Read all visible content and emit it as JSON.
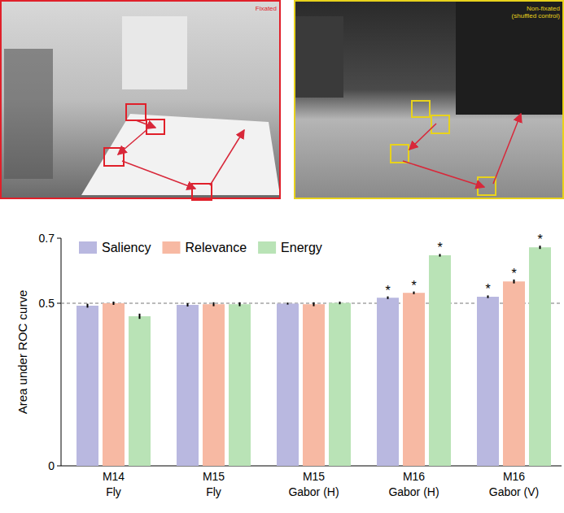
{
  "images": [
    {
      "label": "Fixated",
      "color": "#e0202a"
    },
    {
      "label": "Non-fixated\n(shuffled control)",
      "color": "#e8d21c"
    }
  ],
  "chart_data": {
    "type": "bar",
    "y_label": "Area under ROC curve",
    "categories": [
      "M14\nFly",
      "M15\nFly",
      "M15\nGabor (H)",
      "M16\nGabor (H)",
      "M16\nGabor (V)"
    ],
    "series": [
      {
        "name": "Saliency",
        "color": "#b9b8e0",
        "values": [
          0.4925,
          0.495,
          0.499,
          0.517,
          0.52
        ],
        "errors": [
          0.006,
          0.005,
          0.003,
          0.004,
          0.004
        ],
        "significant": [
          false,
          false,
          false,
          true,
          true
        ]
      },
      {
        "name": "Relevance",
        "color": "#f7b9a3",
        "values": [
          0.5,
          0.497,
          0.497,
          0.532,
          0.567
        ],
        "errors": [
          0.005,
          0.006,
          0.006,
          0.004,
          0.006
        ],
        "significant": [
          false,
          false,
          false,
          true,
          true
        ]
      },
      {
        "name": "Energy",
        "color": "#b9e3b6",
        "values": [
          0.46,
          0.497,
          0.501,
          0.6475,
          0.672
        ],
        "errors": [
          0.008,
          0.006,
          0.004,
          0.004,
          0.005
        ],
        "significant": [
          false,
          false,
          false,
          true,
          true
        ]
      }
    ],
    "significance_label": "*",
    "chance_level": 0.5,
    "ylim": [
      0,
      0.7
    ],
    "yticks": [
      0,
      0.5,
      0.7
    ],
    "legend": "top-left"
  }
}
